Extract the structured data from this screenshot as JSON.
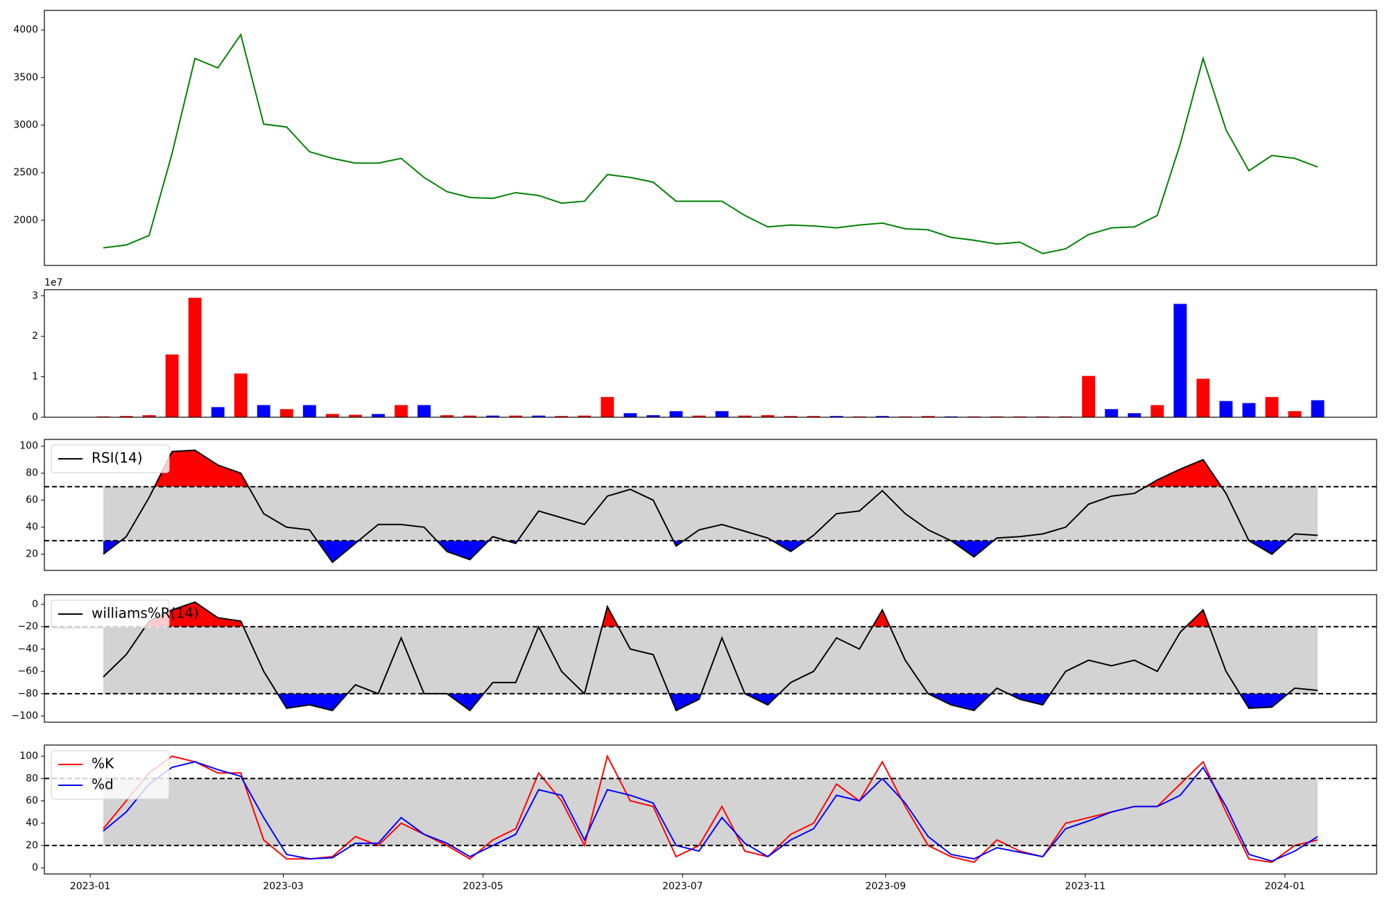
{
  "chart_data": [
    {
      "type": "line",
      "color": "green",
      "x": [
        "2023-01-05",
        "2023-01-12",
        "2023-01-19",
        "2023-01-26",
        "2023-02-02",
        "2023-02-09",
        "2023-02-16",
        "2023-02-23",
        "2023-03-02",
        "2023-03-09",
        "2023-03-16",
        "2023-03-23",
        "2023-03-30",
        "2023-04-06",
        "2023-04-13",
        "2023-04-20",
        "2023-04-27",
        "2023-05-04",
        "2023-05-11",
        "2023-05-18",
        "2023-05-25",
        "2023-06-01",
        "2023-06-08",
        "2023-06-15",
        "2023-06-22",
        "2023-06-29",
        "2023-07-06",
        "2023-07-13",
        "2023-07-20",
        "2023-07-27",
        "2023-08-03",
        "2023-08-10",
        "2023-08-17",
        "2023-08-24",
        "2023-08-31",
        "2023-09-07",
        "2023-09-14",
        "2023-09-21",
        "2023-09-28",
        "2023-10-05",
        "2023-10-12",
        "2023-10-19",
        "2023-10-26",
        "2023-11-02",
        "2023-11-09",
        "2023-11-16",
        "2023-11-23",
        "2023-11-30",
        "2023-12-07",
        "2023-12-14",
        "2023-12-21",
        "2023-12-28",
        "2024-01-04",
        "2024-01-11"
      ],
      "values": [
        1710,
        1740,
        1840,
        2700,
        3700,
        3600,
        3950,
        3010,
        2980,
        2720,
        2650,
        2600,
        2600,
        2650,
        2450,
        2300,
        2240,
        2230,
        2290,
        2260,
        2180,
        2200,
        2480,
        2450,
        2400,
        2200,
        2200,
        2200,
        2050,
        1930,
        1950,
        1940,
        1920,
        1950,
        1970,
        1910,
        1900,
        1820,
        1790,
        1750,
        1770,
        1650,
        1700,
        1850,
        1920,
        1930,
        2050,
        2800,
        3700,
        2950,
        2520,
        2680,
        2650,
        2560
      ],
      "xlim": [
        "2022-12-18",
        "2024-01-29"
      ],
      "ylim": [
        1525,
        4205
      ],
      "yticks": [
        2000,
        2500,
        3000,
        3500,
        4000
      ]
    },
    {
      "type": "bar",
      "offset_label": "1e7",
      "x": [
        "2023-01-05",
        "2023-01-12",
        "2023-01-19",
        "2023-01-26",
        "2023-02-02",
        "2023-02-09",
        "2023-02-16",
        "2023-02-23",
        "2023-03-02",
        "2023-03-09",
        "2023-03-16",
        "2023-03-23",
        "2023-03-30",
        "2023-04-06",
        "2023-04-13",
        "2023-04-20",
        "2023-04-27",
        "2023-05-04",
        "2023-05-11",
        "2023-05-18",
        "2023-05-25",
        "2023-06-01",
        "2023-06-08",
        "2023-06-15",
        "2023-06-22",
        "2023-06-29",
        "2023-07-06",
        "2023-07-13",
        "2023-07-20",
        "2023-07-27",
        "2023-08-03",
        "2023-08-10",
        "2023-08-17",
        "2023-08-24",
        "2023-08-31",
        "2023-09-07",
        "2023-09-14",
        "2023-09-21",
        "2023-09-28",
        "2023-10-05",
        "2023-10-12",
        "2023-10-19",
        "2023-10-26",
        "2023-11-02",
        "2023-11-09",
        "2023-11-16",
        "2023-11-23",
        "2023-11-30",
        "2023-12-07",
        "2023-12-14",
        "2023-12-21",
        "2023-12-28",
        "2024-01-04",
        "2024-01-11"
      ],
      "values": [
        0.02,
        0.03,
        0.05,
        1.55,
        2.95,
        0.25,
        1.08,
        0.3,
        0.2,
        0.3,
        0.08,
        0.06,
        0.08,
        0.3,
        0.3,
        0.05,
        0.04,
        0.04,
        0.04,
        0.04,
        0.03,
        0.04,
        0.5,
        0.1,
        0.05,
        0.15,
        0.04,
        0.15,
        0.04,
        0.05,
        0.03,
        0.03,
        0.03,
        0.02,
        0.03,
        0.02,
        0.03,
        0.02,
        0.02,
        0.02,
        0.02,
        0.02,
        0.02,
        1.02,
        0.2,
        0.1,
        0.3,
        2.8,
        0.95,
        0.4,
        0.35,
        0.5,
        0.15,
        0.42
      ],
      "colors": [
        "red",
        "red",
        "red",
        "red",
        "red",
        "blue",
        "red",
        "blue",
        "red",
        "blue",
        "red",
        "red",
        "blue",
        "red",
        "blue",
        "red",
        "red",
        "blue",
        "red",
        "blue",
        "red",
        "red",
        "red",
        "blue",
        "blue",
        "blue",
        "red",
        "blue",
        "red",
        "red",
        "red",
        "red",
        "blue",
        "red",
        "blue",
        "red",
        "red",
        "blue",
        "red",
        "red",
        "red",
        "red",
        "red",
        "red",
        "blue",
        "blue",
        "red",
        "blue",
        "red",
        "blue",
        "blue",
        "red",
        "red",
        "blue"
      ],
      "xlim": [
        "2022-12-18",
        "2024-01-29"
      ],
      "ylim": [
        0,
        3.15
      ],
      "yticks": [
        0,
        1,
        2,
        3
      ]
    },
    {
      "type": "line",
      "legend": "upper left",
      "x": [
        "2023-01-05",
        "2023-01-12",
        "2023-01-19",
        "2023-01-26",
        "2023-02-02",
        "2023-02-09",
        "2023-02-16",
        "2023-02-23",
        "2023-03-02",
        "2023-03-09",
        "2023-03-16",
        "2023-03-23",
        "2023-03-30",
        "2023-04-06",
        "2023-04-13",
        "2023-04-20",
        "2023-04-27",
        "2023-05-04",
        "2023-05-11",
        "2023-05-18",
        "2023-05-25",
        "2023-06-01",
        "2023-06-08",
        "2023-06-15",
        "2023-06-22",
        "2023-06-29",
        "2023-07-06",
        "2023-07-13",
        "2023-07-20",
        "2023-07-27",
        "2023-08-03",
        "2023-08-10",
        "2023-08-17",
        "2023-08-24",
        "2023-08-31",
        "2023-09-07",
        "2023-09-14",
        "2023-09-21",
        "2023-09-28",
        "2023-10-05",
        "2023-10-12",
        "2023-10-19",
        "2023-10-26",
        "2023-11-02",
        "2023-11-09",
        "2023-11-16",
        "2023-11-23",
        "2023-11-30",
        "2023-12-07",
        "2023-12-14",
        "2023-12-21",
        "2023-12-28",
        "2024-01-04",
        "2024-01-11"
      ],
      "series": [
        {
          "name": "RSI(14)",
          "color": "black",
          "values": [
            20,
            33,
            62,
            96,
            97,
            86,
            80,
            50,
            40,
            38,
            14,
            28,
            42,
            42,
            40,
            22,
            16,
            33,
            28,
            52,
            47,
            42,
            63,
            68,
            60,
            26,
            38,
            42,
            37,
            32,
            22,
            34,
            50,
            52,
            67,
            50,
            38,
            30,
            18,
            32,
            33,
            35,
            40,
            57,
            63,
            65,
            75,
            83,
            90,
            65,
            30,
            20,
            35,
            34
          ]
        }
      ],
      "hlines": [
        70,
        30
      ],
      "band_color": "lightgray",
      "fill_above_color": "red",
      "fill_below_color": "blue",
      "xlim": [
        "2022-12-18",
        "2024-01-29"
      ],
      "ylim": [
        8,
        105
      ],
      "yticks": [
        20,
        40,
        60,
        80,
        100
      ]
    },
    {
      "type": "line",
      "legend": "upper left",
      "x": [
        "2023-01-05",
        "2023-01-12",
        "2023-01-19",
        "2023-01-26",
        "2023-02-02",
        "2023-02-09",
        "2023-02-16",
        "2023-02-23",
        "2023-03-02",
        "2023-03-09",
        "2023-03-16",
        "2023-03-23",
        "2023-03-30",
        "2023-04-06",
        "2023-04-13",
        "2023-04-20",
        "2023-04-27",
        "2023-05-04",
        "2023-05-11",
        "2023-05-18",
        "2023-05-25",
        "2023-06-01",
        "2023-06-08",
        "2023-06-15",
        "2023-06-22",
        "2023-06-29",
        "2023-07-06",
        "2023-07-13",
        "2023-07-20",
        "2023-07-27",
        "2023-08-03",
        "2023-08-10",
        "2023-08-17",
        "2023-08-24",
        "2023-08-31",
        "2023-09-07",
        "2023-09-14",
        "2023-09-21",
        "2023-09-28",
        "2023-10-05",
        "2023-10-12",
        "2023-10-19",
        "2023-10-26",
        "2023-11-02",
        "2023-11-09",
        "2023-11-16",
        "2023-11-23",
        "2023-11-30",
        "2023-12-07",
        "2023-12-14",
        "2023-12-21",
        "2023-12-28",
        "2024-01-04",
        "2024-01-11"
      ],
      "series": [
        {
          "name": "williams%R(14)",
          "color": "black",
          "values": [
            -65,
            -45,
            -15,
            -5,
            2,
            -12,
            -15,
            -60,
            -93,
            -90,
            -95,
            -72,
            -80,
            -30,
            -80,
            -80,
            -95,
            -70,
            -70,
            -20,
            -60,
            -80,
            -2,
            -40,
            -45,
            -95,
            -85,
            -30,
            -80,
            -90,
            -70,
            -60,
            -30,
            -40,
            -5,
            -50,
            -80,
            -90,
            -95,
            -75,
            -85,
            -90,
            -60,
            -50,
            -55,
            -50,
            -60,
            -25,
            -5,
            -60,
            -93,
            -92,
            -75,
            -77
          ]
        }
      ],
      "hlines": [
        -20,
        -80
      ],
      "band_color": "lightgray",
      "fill_above_color": "red",
      "fill_below_color": "blue",
      "xlim": [
        "2022-12-18",
        "2024-01-29"
      ],
      "ylim": [
        -105.5,
        8.7
      ],
      "yticks": [
        {
          "value": -100,
          "label": "−100"
        },
        {
          "value": -80,
          "label": "−80"
        },
        {
          "value": -60,
          "label": "−60"
        },
        {
          "value": -40,
          "label": "−40"
        },
        {
          "value": -20,
          "label": "−20"
        },
        0
      ]
    },
    {
      "type": "line",
      "legend": "upper left",
      "x": [
        "2023-01-05",
        "2023-01-12",
        "2023-01-19",
        "2023-01-26",
        "2023-02-02",
        "2023-02-09",
        "2023-02-16",
        "2023-02-23",
        "2023-03-02",
        "2023-03-09",
        "2023-03-16",
        "2023-03-23",
        "2023-03-30",
        "2023-04-06",
        "2023-04-13",
        "2023-04-20",
        "2023-04-27",
        "2023-05-04",
        "2023-05-11",
        "2023-05-18",
        "2023-05-25",
        "2023-06-01",
        "2023-06-08",
        "2023-06-15",
        "2023-06-22",
        "2023-06-29",
        "2023-07-06",
        "2023-07-13",
        "2023-07-20",
        "2023-07-27",
        "2023-08-03",
        "2023-08-10",
        "2023-08-17",
        "2023-08-24",
        "2023-08-31",
        "2023-09-07",
        "2023-09-14",
        "2023-09-21",
        "2023-09-28",
        "2023-10-05",
        "2023-10-12",
        "2023-10-19",
        "2023-10-26",
        "2023-11-02",
        "2023-11-09",
        "2023-11-16",
        "2023-11-23",
        "2023-11-30",
        "2023-12-07",
        "2023-12-14",
        "2023-12-21",
        "2023-12-28",
        "2024-01-04",
        "2024-01-11"
      ],
      "series": [
        {
          "name": "%K",
          "color": "red",
          "values": [
            35,
            60,
            85,
            100,
            95,
            85,
            85,
            25,
            8,
            8,
            10,
            28,
            20,
            40,
            30,
            20,
            8,
            25,
            35,
            85,
            60,
            20,
            100,
            60,
            55,
            10,
            20,
            55,
            15,
            10,
            30,
            40,
            75,
            60,
            95,
            55,
            20,
            10,
            5,
            25,
            15,
            10,
            40,
            45,
            50,
            55,
            55,
            75,
            95,
            50,
            8,
            5,
            20,
            25
          ]
        },
        {
          "name": "%d",
          "color": "blue",
          "values": [
            33,
            50,
            75,
            90,
            95,
            88,
            82,
            45,
            12,
            8,
            9,
            22,
            22,
            45,
            30,
            22,
            10,
            20,
            30,
            70,
            65,
            25,
            70,
            65,
            58,
            20,
            15,
            45,
            22,
            10,
            25,
            35,
            65,
            60,
            80,
            58,
            28,
            12,
            8,
            18,
            14,
            10,
            35,
            42,
            50,
            55,
            55,
            65,
            90,
            55,
            12,
            6,
            15,
            28
          ]
        }
      ],
      "hlines": [
        80,
        20
      ],
      "band_color": "lightgray",
      "xlim": [
        "2022-12-18",
        "2024-01-29"
      ],
      "ylim": [
        -5.5,
        110
      ],
      "yticks": [
        0,
        20,
        40,
        60,
        80,
        100
      ],
      "xticks": [
        {
          "value": "2023-01-01",
          "label": "2023-01"
        },
        {
          "value": "2023-03-01",
          "label": "2023-03"
        },
        {
          "value": "2023-05-01",
          "label": "2023-05"
        },
        {
          "value": "2023-07-01",
          "label": "2023-07"
        },
        {
          "value": "2023-09-01",
          "label": "2023-09"
        },
        {
          "value": "2023-11-01",
          "label": "2023-11"
        },
        {
          "value": "2024-01-01",
          "label": "2024-01"
        }
      ]
    }
  ]
}
